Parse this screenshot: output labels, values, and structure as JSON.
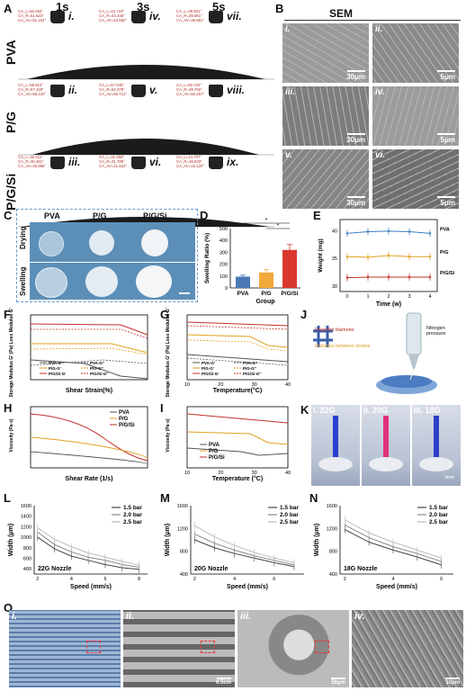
{
  "panels": {
    "A": "A",
    "B": "B",
    "C": "C",
    "D": "D",
    "E": "E",
    "F": "F",
    "G": "G",
    "H": "H",
    "I": "I",
    "J": "J",
    "K": "K",
    "L": "L",
    "M": "M",
    "N": "N",
    "O": "O"
  },
  "panel_a": {
    "time_headers": [
      "1s",
      "3s",
      "5s"
    ],
    "row_labels": [
      "PVA",
      "P/G",
      "P/G/Si"
    ],
    "cells": [
      {
        "roman": "i.",
        "ca": [
          "CA_L=50.684°",
          "CA_R=51.623°",
          "CA_AV=51.153°"
        ]
      },
      {
        "roman": "iv.",
        "ca": [
          "CA_L=43.719°",
          "CA_R=43.445°",
          "CA_AV=43.582°"
        ]
      },
      {
        "roman": "vii.",
        "ca": [
          "CA_L=39.901°",
          "CA_R=39.861°",
          "CA_AV=39.881°"
        ]
      },
      {
        "roman": "ii.",
        "ca": [
          "CA_L=58.812°",
          "CA_R=57.429°",
          "CA_AV=58.120°"
        ]
      },
      {
        "roman": "v.",
        "ca": [
          "CA_L=57.045°",
          "CA_R=54.379°",
          "CA_AV=55.712°"
        ]
      },
      {
        "roman": "viii.",
        "ca": [
          "CA_L=50.722°",
          "CA_R=49.792°",
          "CA_AV=50.257°"
        ]
      },
      {
        "roman": "iii.",
        "ca": [
          "CA_L=35.411°",
          "CA_R=36.361°",
          "CA_AV=35.886°"
        ]
      },
      {
        "roman": "vi.",
        "ca": [
          "CA_L=31.458°",
          "CA_R=31.785°",
          "CA_AV=31.622°"
        ]
      },
      {
        "roman": "ix.",
        "ca": [
          "CA_L=14.707°",
          "CA_R=15.533°",
          "CA_AV=15.120°"
        ]
      }
    ]
  },
  "panel_b": {
    "title": "SEM",
    "images": [
      {
        "roman": "i.",
        "scale": "30μm",
        "color": "#9a9a9a"
      },
      {
        "roman": "ii.",
        "scale": "5μm",
        "color": "#8a8a8a"
      },
      {
        "roman": "iii.",
        "scale": "30μm",
        "color": "#7d7d7d"
      },
      {
        "roman": "iv.",
        "scale": "5μm",
        "color": "#9c9c9c"
      },
      {
        "roman": "v.",
        "scale": "30μm",
        "color": "#858585"
      },
      {
        "roman": "vi.",
        "scale": "5μm",
        "color": "#6f6f6f"
      }
    ]
  },
  "panel_c": {
    "columns": [
      "PVA",
      "P/G",
      "P/G/Si"
    ],
    "rows": [
      "Drying",
      "Swelling"
    ]
  },
  "panel_d": {
    "ylabel": "Swelling Ratio (%)",
    "xlabel": "Group",
    "yticks": [
      "0",
      "100",
      "200",
      "300",
      "400",
      "500"
    ],
    "sig": [
      "*",
      "*"
    ]
  },
  "panel_e": {
    "ylabel": "Weight (mg)",
    "xlabel": "Time (w)",
    "yticks": [
      "30",
      "35",
      "40"
    ],
    "xticks": [
      "0",
      "1",
      "2",
      "3",
      "4"
    ]
  },
  "panel_f": {
    "ylabel": "Storage Modulus G' (Pa) Loss Modulus G'' (Pa)",
    "xlabel": "Shear Strain(%)",
    "legend": [
      "PVA-G'",
      "PVA-G''",
      "P/G-G'",
      "P/G-G''",
      "P/G/Si-G'",
      "P/G/Si-G''"
    ]
  },
  "panel_g": {
    "ylabel": "Storage Modulus G' (Pa) Loss Modulus G'' (Pa)",
    "xlabel": "Temperature(°C)",
    "legend": [
      "PVA-G'",
      "PVA-G''",
      "P/G-G'",
      "P/G-G''",
      "P/G/Si-G'",
      "P/G/Si-G''"
    ],
    "xticks": [
      "10",
      "20",
      "30",
      "40"
    ]
  },
  "panel_h": {
    "ylabel": "Viscosity (Pa·s)",
    "xlabel": "Shear Rate (1/s)",
    "legend": [
      "PVA",
      "P/G",
      "P/G/Si"
    ]
  },
  "panel_i": {
    "ylabel": "Viscosity (Pa·s)",
    "xlabel": "Temperature (°C)",
    "legend": [
      "PVA",
      "P/G",
      "P/G/Si"
    ],
    "xticks": [
      "10",
      "20",
      "30",
      "40"
    ]
  },
  "panel_j": {
    "labels": [
      "Filament diameter",
      "Distance between strains",
      "Nitrogen pressure"
    ]
  },
  "panel_k": {
    "images": [
      {
        "label": "i. 22G",
        "color": "#2a3fd0"
      },
      {
        "label": "ii. 20G",
        "color": "#e0317a"
      },
      {
        "label": "iii. 18G",
        "color": "#2e3ec8"
      }
    ],
    "scale": "3mm"
  },
  "panel_o": {
    "images": [
      {
        "roman": "i.",
        "scale": ""
      },
      {
        "roman": "ii.",
        "scale": "0.5cm"
      },
      {
        "roman": "iii.",
        "scale": "50μm"
      },
      {
        "roman": "iv.",
        "scale": "10μm"
      }
    ]
  },
  "chart_data": [
    {
      "panel": "D",
      "type": "bar",
      "categories": [
        "PVA",
        "P/G",
        "P/G/Si"
      ],
      "values": [
        95,
        130,
        320
      ],
      "errors": [
        12,
        25,
        45
      ],
      "colors": [
        "#4a78b5",
        "#f2a93b",
        "#d9382f"
      ],
      "ylim": [
        0,
        500
      ],
      "xlabel": "Group",
      "ylabel": "Swelling Ratio (%)"
    },
    {
      "panel": "E",
      "type": "line",
      "x": [
        0,
        1,
        2,
        3,
        4
      ],
      "series": [
        {
          "name": "PVA",
          "values": [
            39.5,
            39.8,
            39.9,
            39.8,
            39.5
          ],
          "color": "#3a7fc2"
        },
        {
          "name": "P/G",
          "values": [
            35.3,
            35.2,
            35.5,
            35.3,
            35.3
          ],
          "color": "#e0a020"
        },
        {
          "name": "P/G/Si",
          "values": [
            31.5,
            31.6,
            31.6,
            31.6,
            31.6
          ],
          "color": "#c0302a"
        }
      ],
      "ylim": [
        29,
        42
      ],
      "xlabel": "Time (w)",
      "ylabel": "Weight (mg)"
    },
    {
      "panel": "L",
      "type": "line",
      "x": [
        2,
        3,
        4,
        5,
        6,
        7,
        8
      ],
      "series": [
        {
          "name": "1.5 bar",
          "values": [
            1000,
            780,
            640,
            560,
            480,
            420,
            390
          ]
        },
        {
          "name": "2.0 bar",
          "values": [
            1100,
            860,
            720,
            620,
            560,
            480,
            430
          ]
        },
        {
          "name": "2.5 bar",
          "values": [
            1180,
            960,
            820,
            700,
            620,
            540,
            470
          ]
        }
      ],
      "ylim": [
        300,
        1600
      ],
      "xlabel": "Speed (mm/s)",
      "ylabel": "Width (μm)",
      "annotation": "22G Nozzle"
    },
    {
      "panel": "M",
      "type": "line",
      "x": [
        2,
        3,
        4,
        5,
        6,
        7
      ],
      "series": [
        {
          "name": "1.5 bar",
          "values": [
            1000,
            860,
            760,
            680,
            600,
            530
          ]
        },
        {
          "name": "2.0 bar",
          "values": [
            1100,
            940,
            820,
            720,
            640,
            560
          ]
        },
        {
          "name": "2.5 bar",
          "values": [
            1250,
            1050,
            900,
            780,
            680,
            600
          ]
        }
      ],
      "ylim": [
        400,
        1600
      ],
      "xlabel": "Speed (mm/s)",
      "ylabel": "Width (μm)",
      "annotation": "20G Nozzle"
    },
    {
      "panel": "N",
      "type": "line",
      "x": [
        2,
        3,
        4,
        5,
        6
      ],
      "series": [
        {
          "name": "1.5 bar",
          "values": [
            1180,
            960,
            820,
            700,
            560
          ]
        },
        {
          "name": "2.0 bar",
          "values": [
            1260,
            1040,
            880,
            760,
            620
          ]
        },
        {
          "name": "2.5 bar",
          "values": [
            1350,
            1120,
            960,
            820,
            680
          ]
        }
      ],
      "ylim": [
        400,
        1600
      ],
      "xlabel": "Speed (mm/s)",
      "ylabel": "Width (μm)",
      "annotation": "18G Nozzle"
    }
  ]
}
